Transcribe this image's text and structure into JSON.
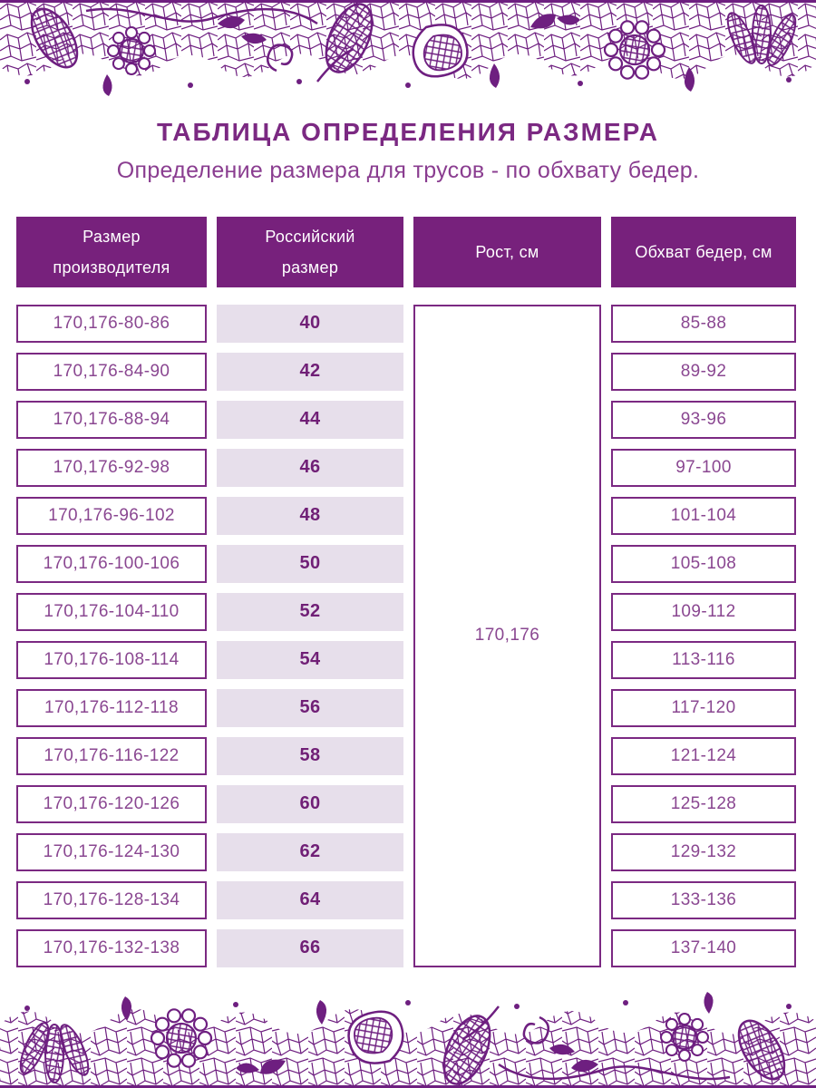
{
  "page": {
    "title": "ТАБЛИЦА ОПРЕДЕЛЕНИЯ РАЗМЕРА",
    "subtitle": "Определение размера для трусов - по обхвату бедер."
  },
  "table": {
    "headers": [
      "Размер производителя",
      "Российский размер",
      "Рост, см",
      "Обхват бедер, см"
    ],
    "height_cm": "170,176",
    "rows": [
      {
        "manufacturer_size": "170,176-80-86",
        "russian_size": "40",
        "hips": "85-88"
      },
      {
        "manufacturer_size": "170,176-84-90",
        "russian_size": "42",
        "hips": "89-92"
      },
      {
        "manufacturer_size": "170,176-88-94",
        "russian_size": "44",
        "hips": "93-96"
      },
      {
        "manufacturer_size": "170,176-92-98",
        "russian_size": "46",
        "hips": "97-100"
      },
      {
        "manufacturer_size": "170,176-96-102",
        "russian_size": "48",
        "hips": "101-104"
      },
      {
        "manufacturer_size": "170,176-100-106",
        "russian_size": "50",
        "hips": "105-108"
      },
      {
        "manufacturer_size": "170,176-104-110",
        "russian_size": "52",
        "hips": "109-112"
      },
      {
        "manufacturer_size": "170,176-108-114",
        "russian_size": "54",
        "hips": "113-116"
      },
      {
        "manufacturer_size": "170,176-112-118",
        "russian_size": "56",
        "hips": "117-120"
      },
      {
        "manufacturer_size": "170,176-116-122",
        "russian_size": "58",
        "hips": "121-124"
      },
      {
        "manufacturer_size": "170,176-120-126",
        "russian_size": "60",
        "hips": "125-128"
      },
      {
        "manufacturer_size": "170,176-124-130",
        "russian_size": "62",
        "hips": "129-132"
      },
      {
        "manufacturer_size": "170,176-128-134",
        "russian_size": "64",
        "hips": "133-136"
      },
      {
        "manufacturer_size": "170,176-132-138",
        "russian_size": "66",
        "hips": "137-140"
      }
    ]
  },
  "decor": {
    "top_ornament": "lace-border",
    "bottom_ornament": "lace-border"
  },
  "colors": {
    "lace_purple": "#6E1F80",
    "header_bg": "#77217C",
    "header_text": "#FFFFFF",
    "cell_border": "#7B2982",
    "cell_text": "#8A4791",
    "russian_size_text": "#701F76",
    "russian_size_bg": "#E7DFEB",
    "title_text": "#7B2982",
    "subtitle_text": "#8A3D90"
  }
}
